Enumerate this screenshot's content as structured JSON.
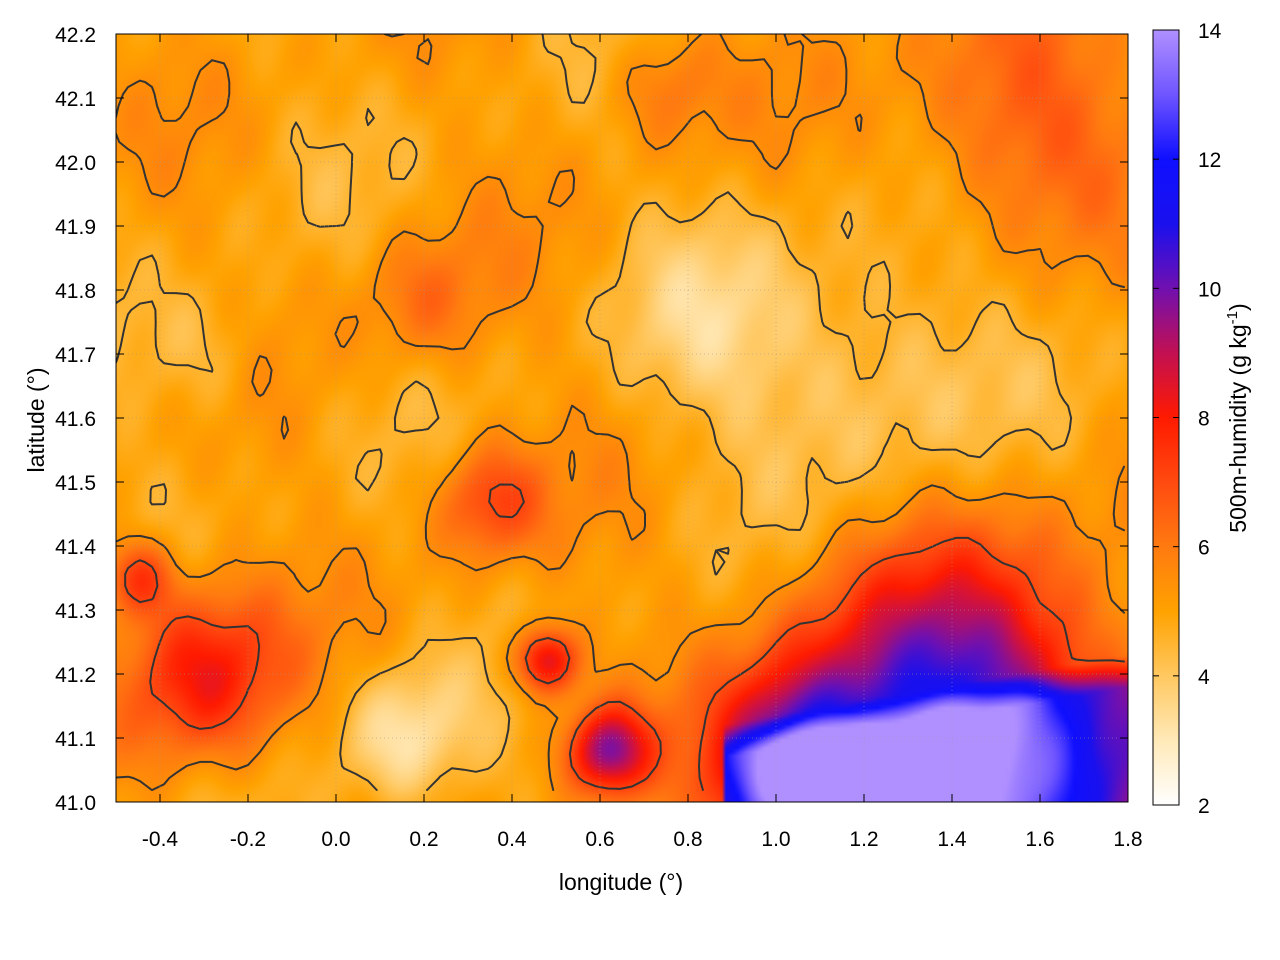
{
  "chart_data": {
    "type": "heatmap",
    "title": "",
    "xlabel": "longitude (°)",
    "ylabel": "latitude (°)",
    "xlim": [
      -0.5,
      1.8
    ],
    "ylim": [
      41.0,
      42.2
    ],
    "x_ticks": [
      -0.4,
      -0.2,
      0.0,
      0.2,
      0.4,
      0.6,
      0.8,
      1.0,
      1.2,
      1.4,
      1.6,
      1.8
    ],
    "x_tick_labels": [
      "-0.4",
      "-0.2",
      "0.0",
      "0.2",
      "0.4",
      "0.6",
      "0.8",
      "1.0",
      "1.2",
      "1.4",
      "1.6",
      "1.8"
    ],
    "y_ticks": [
      41.0,
      41.1,
      41.2,
      41.3,
      41.4,
      41.5,
      41.6,
      41.7,
      41.8,
      41.9,
      42.0,
      42.1,
      42.2
    ],
    "y_tick_labels": [
      "41.0",
      "41.1",
      "41.2",
      "41.3",
      "41.4",
      "41.5",
      "41.6",
      "41.7",
      "41.8",
      "41.9",
      "42.0",
      "42.1",
      "42.2"
    ],
    "grid": true,
    "colorbar": {
      "label": "500m-humidity (g kg",
      "label_superscript": "-1",
      "label_suffix": ")",
      "range": [
        2,
        14
      ],
      "ticks": [
        2,
        4,
        6,
        8,
        10,
        12,
        14
      ],
      "tick_labels": [
        "2",
        "4",
        "6",
        "8",
        "10",
        "12",
        "14"
      ],
      "colormap": [
        {
          "value": 2,
          "color": "#ffffff"
        },
        {
          "value": 3,
          "color": "#ffe9b8"
        },
        {
          "value": 4,
          "color": "#ffc860"
        },
        {
          "value": 5,
          "color": "#ffa200"
        },
        {
          "value": 6,
          "color": "#ff7a10"
        },
        {
          "value": 7,
          "color": "#ff4a10"
        },
        {
          "value": 8,
          "color": "#ff1a00"
        },
        {
          "value": 9,
          "color": "#c21052"
        },
        {
          "value": 10,
          "color": "#7010b0"
        },
        {
          "value": 11,
          "color": "#1a10ee"
        },
        {
          "value": 12,
          "color": "#0f0fff"
        },
        {
          "value": 13,
          "color": "#6f55ff"
        },
        {
          "value": 14,
          "color": "#b090ff"
        }
      ]
    },
    "contour_levels": [
      4.5,
      5.5,
      7
    ],
    "contour_color": "#333333",
    "field_description_centers": [
      {
        "lon": -0.3,
        "lat": 41.2,
        "amp": 3.2,
        "r": 0.18
      },
      {
        "lon": -0.45,
        "lat": 41.35,
        "amp": 2.5,
        "r": 0.08
      },
      {
        "lon": 1.4,
        "lat": 41.1,
        "amp": 6.5,
        "r": 0.35
      },
      {
        "lon": 1.05,
        "lat": 41.05,
        "amp": 5.5,
        "r": 0.18
      },
      {
        "lon": 0.62,
        "lat": 41.08,
        "amp": 4.5,
        "r": 0.09
      },
      {
        "lon": 0.48,
        "lat": 41.22,
        "amp": 4.0,
        "r": 0.07
      },
      {
        "lon": 0.35,
        "lat": 41.47,
        "amp": 2.2,
        "r": 0.12
      },
      {
        "lon": 0.2,
        "lat": 41.78,
        "amp": 1.2,
        "r": 0.14
      },
      {
        "lon": 1.55,
        "lat": 42.08,
        "amp": 1.8,
        "r": 0.25
      },
      {
        "lon": 0.75,
        "lat": 42.12,
        "amp": 1.2,
        "r": 0.12
      },
      {
        "lon": 0.15,
        "lat": 41.1,
        "amp": -1.8,
        "r": 0.14
      },
      {
        "lon": 1.2,
        "lat": 41.65,
        "amp": -1.3,
        "r": 0.28
      },
      {
        "lon": 0.85,
        "lat": 41.75,
        "amp": -1.0,
        "r": 0.2
      },
      {
        "lon": -0.3,
        "lat": 41.7,
        "amp": -0.9,
        "r": 0.14
      }
    ],
    "field_base": 5.0
  }
}
